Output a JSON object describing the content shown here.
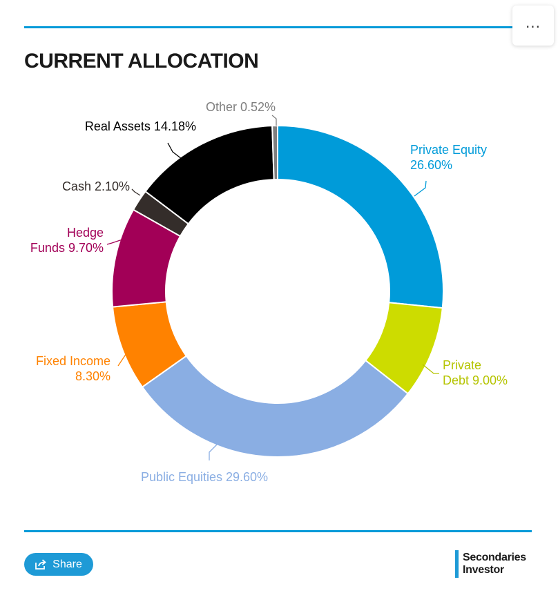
{
  "menu": {
    "label": "..."
  },
  "chart_data": {
    "type": "pie",
    "title": "CURRENT ALLOCATION",
    "donut": true,
    "slices": [
      {
        "label": "Private Equity 26.60%",
        "lines": [
          "Private Equity",
          "26.60%"
        ],
        "value": 26.6,
        "color": "#009bd9"
      },
      {
        "label": "Private Debt 9.00%",
        "lines": [
          "Private",
          "Debt 9.00%"
        ],
        "value": 9.0,
        "color": "#cddc00"
      },
      {
        "label": "Public Equities 29.60%",
        "lines": [
          "Public Equities 29.60%"
        ],
        "value": 29.6,
        "color": "#8aaee3"
      },
      {
        "label": "Fixed Income 8.30%",
        "lines": [
          "Fixed Income",
          "8.30%"
        ],
        "value": 8.3,
        "color": "#ff8200"
      },
      {
        "label": "Hedge Funds 9.70%",
        "lines": [
          "Hedge",
          "Funds 9.70%"
        ],
        "value": 9.7,
        "color": "#a20057"
      },
      {
        "label": "Cash 2.10%",
        "lines": [
          "Cash 2.10%"
        ],
        "value": 2.1,
        "color": "#342d2a"
      },
      {
        "label": "Real Assets 14.18%",
        "lines": [
          "Real Assets 14.18%"
        ],
        "value": 14.18,
        "color": "#000000"
      },
      {
        "label": "Other 0.52%",
        "lines": [
          "Other 0.52%"
        ],
        "value": 0.52,
        "color": "#7f7f7f"
      }
    ],
    "label_colors": [
      "#009bd9",
      "#b5c400",
      "#8aaee3",
      "#ff8200",
      "#a20057",
      "#342d2a",
      "#000000",
      "#7f7f7f"
    ]
  },
  "footer": {
    "share_label": "Share",
    "brand_line1": "Secondaries",
    "brand_line2": "Investor"
  }
}
